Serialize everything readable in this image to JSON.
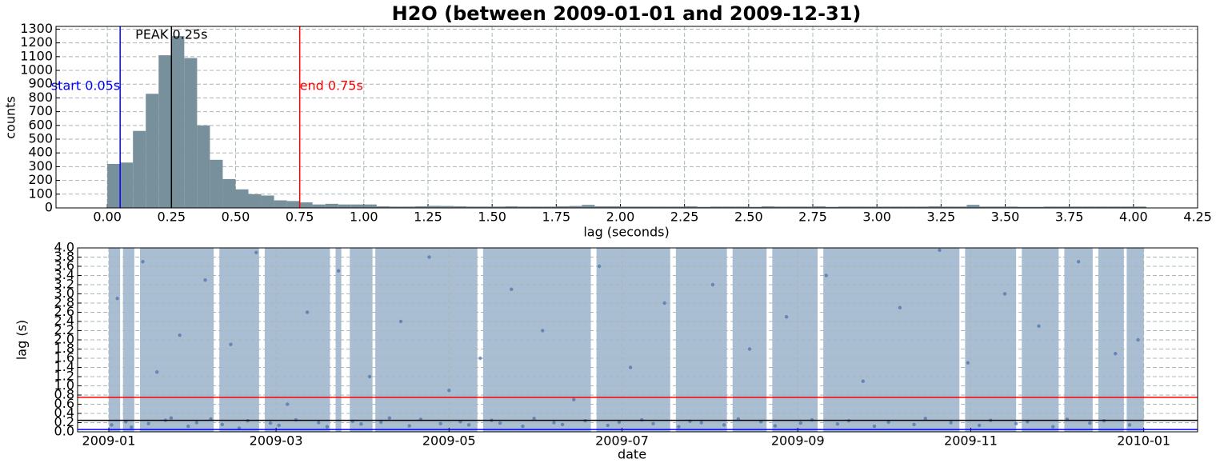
{
  "chart_data": [
    {
      "type": "histogram",
      "title": "H2O (between 2009-01-01 and 2009-12-31)",
      "x_label": "lag (seconds)",
      "y_label": "counts",
      "color": "#78909c",
      "grid": true,
      "bins": [
        0,
        0.05,
        0.1,
        0.15,
        0.2,
        0.25,
        0.3,
        0.35,
        0.4,
        0.45,
        0.5,
        0.55,
        0.6,
        0.65,
        0.7,
        0.75,
        0.8,
        0.85,
        0.9,
        0.95,
        1,
        1.05,
        1.1,
        1.15,
        1.2,
        1.25,
        1.3,
        1.35,
        1.4,
        1.45,
        1.5,
        1.55,
        1.6,
        1.65,
        1.7,
        1.75,
        1.8,
        1.85,
        1.9,
        1.95,
        2,
        2.05,
        2.1,
        2.15,
        2.2,
        2.25,
        2.3,
        2.35,
        2.4,
        2.45,
        2.5,
        2.55,
        2.6,
        2.65,
        2.7,
        2.75,
        2.8,
        2.85,
        2.9,
        2.95,
        3,
        3.05,
        3.1,
        3.15,
        3.2,
        3.25,
        3.3,
        3.35,
        3.4,
        3.45,
        3.5,
        3.55,
        3.6,
        3.65,
        3.7,
        3.75,
        3.8,
        3.85,
        3.9,
        3.95,
        4,
        4.05
      ],
      "values": [
        320,
        330,
        560,
        830,
        1110,
        1250,
        1090,
        600,
        350,
        210,
        135,
        100,
        90,
        55,
        50,
        40,
        25,
        30,
        25,
        25,
        25,
        12,
        10,
        10,
        12,
        15,
        14,
        12,
        10,
        10,
        10,
        12,
        10,
        10,
        10,
        12,
        14,
        22,
        12,
        12,
        10,
        10,
        10,
        10,
        10,
        12,
        8,
        10,
        10,
        10,
        8,
        12,
        10,
        10,
        10,
        12,
        8,
        10,
        10,
        10,
        10,
        10,
        10,
        10,
        12,
        10,
        10,
        22,
        10,
        10,
        10,
        8,
        8,
        10,
        10,
        10,
        10,
        10,
        10,
        10,
        10
      ],
      "xlim": [
        -0.2,
        4.25
      ],
      "ylim": [
        0,
        1320
      ],
      "xticks": [
        {
          "value": 0,
          "label": "0.00"
        },
        {
          "value": 0.25,
          "label": "0.25"
        },
        {
          "value": 0.5,
          "label": "0.50"
        },
        {
          "value": 0.75,
          "label": "0.75"
        },
        {
          "value": 1,
          "label": "1.00"
        },
        {
          "value": 1.25,
          "label": "1.25"
        },
        {
          "value": 1.5,
          "label": "1.50"
        },
        {
          "value": 1.75,
          "label": "1.75"
        },
        {
          "value": 2,
          "label": "2.00"
        },
        {
          "value": 2.25,
          "label": "2.25"
        },
        {
          "value": 2.5,
          "label": "2.50"
        },
        {
          "value": 2.75,
          "label": "2.75"
        },
        {
          "value": 3,
          "label": "3.00"
        },
        {
          "value": 3.25,
          "label": "3.25"
        },
        {
          "value": 3.5,
          "label": "3.50"
        },
        {
          "value": 3.75,
          "label": "3.75"
        },
        {
          "value": 4,
          "label": "4.00"
        },
        {
          "value": 4.25,
          "label": "4.25"
        }
      ],
      "yticks": [
        0,
        100,
        200,
        300,
        400,
        500,
        600,
        700,
        800,
        900,
        1000,
        1100,
        1200,
        1300
      ],
      "annotations": [
        {
          "x": 0.05,
          "label": "start 0.05s",
          "color": "#0000ff"
        },
        {
          "x": 0.75,
          "label": "end 0.75s",
          "color": "#ff0000"
        },
        {
          "x": 0.25,
          "label": "PEAK 0.25s",
          "color": "#000000"
        }
      ]
    },
    {
      "type": "scatter",
      "x_label": "date",
      "y_label": "lag (s)",
      "color": "#4f74a8",
      "span_color": "#a9bdd3",
      "grid": true,
      "x": [
        1,
        3,
        6,
        8,
        12,
        14,
        17,
        20,
        22,
        25,
        28,
        31,
        34,
        36,
        40,
        43,
        46,
        49,
        52,
        57,
        60,
        63,
        66,
        70,
        74,
        77,
        81,
        86,
        89,
        92,
        96,
        99,
        103,
        106,
        110,
        113,
        117,
        120,
        124,
        127,
        131,
        135,
        138,
        142,
        146,
        150,
        153,
        157,
        160,
        164,
        168,
        173,
        176,
        180,
        184,
        188,
        192,
        196,
        201,
        205,
        209,
        213,
        217,
        222,
        226,
        230,
        235,
        239,
        244,
        248,
        253,
        257,
        261,
        266,
        270,
        275,
        279,
        284,
        288,
        293,
        297,
        303,
        307,
        311,
        316,
        320,
        324,
        328,
        333,
        338,
        342,
        346,
        351,
        355,
        360,
        363
      ],
      "values": [
        0.15,
        2.9,
        0.22,
        0.1,
        3.7,
        0.18,
        1.3,
        0.25,
        0.3,
        2.1,
        0.12,
        0.2,
        3.3,
        0.28,
        0.16,
        1.9,
        0.08,
        0.24,
        3.9,
        0.19,
        0.14,
        0.6,
        0.26,
        2.6,
        0.2,
        0.11,
        3.5,
        0.23,
        0.17,
        1.2,
        0.21,
        0.3,
        2.4,
        0.13,
        0.27,
        3.8,
        0.18,
        0.9,
        0.22,
        0.15,
        1.6,
        0.25,
        0.19,
        3.1,
        0.12,
        0.29,
        2.2,
        0.2,
        0.16,
        0.7,
        0.24,
        3.6,
        0.14,
        0.21,
        1.4,
        0.26,
        0.18,
        2.8,
        0.11,
        0.23,
        0.2,
        3.2,
        0.15,
        0.28,
        1.8,
        0.22,
        0.13,
        2.5,
        0.19,
        0.26,
        3.4,
        0.17,
        0.24,
        1.1,
        0.12,
        0.21,
        2.7,
        0.16,
        0.29,
        3.95,
        0.2,
        1.5,
        0.14,
        0.25,
        3.0,
        0.18,
        0.22,
        2.3,
        0.11,
        0.27,
        3.7,
        0.19,
        0.24,
        1.7,
        0.15,
        2.0
      ],
      "spans": [
        [
          0,
          4
        ],
        [
          5,
          9
        ],
        [
          11,
          37
        ],
        [
          39,
          53
        ],
        [
          55,
          78
        ],
        [
          80,
          82
        ],
        [
          85,
          93
        ],
        [
          94,
          130
        ],
        [
          132,
          170
        ],
        [
          172,
          198
        ],
        [
          200,
          218
        ],
        [
          220,
          232
        ],
        [
          234,
          250
        ],
        [
          252,
          300
        ],
        [
          302,
          320
        ],
        [
          322,
          335
        ],
        [
          337,
          347
        ],
        [
          349,
          358
        ],
        [
          359,
          365
        ]
      ],
      "hlines": [
        {
          "y": 0.75,
          "color": "#ff0000"
        },
        {
          "y": 0.25,
          "color": "#000000"
        },
        {
          "y": 0.05,
          "color": "#0000ff"
        }
      ],
      "xlim": [
        -11,
        384
      ],
      "ylim": [
        0,
        4
      ],
      "xticks": [
        {
          "value": 0,
          "label": "2009-01"
        },
        {
          "value": 59,
          "label": "2009-03"
        },
        {
          "value": 120,
          "label": "2009-05"
        },
        {
          "value": 181,
          "label": "2009-07"
        },
        {
          "value": 243,
          "label": "2009-09"
        },
        {
          "value": 304,
          "label": "2009-11"
        },
        {
          "value": 365,
          "label": "2010-01"
        }
      ],
      "yticks": [
        {
          "value": 0,
          "label": "0.0"
        },
        {
          "value": 0.2,
          "label": "0.2"
        },
        {
          "value": 0.4,
          "label": "0.4"
        },
        {
          "value": 0.6,
          "label": "0.6"
        },
        {
          "value": 0.8,
          "label": "0.8"
        },
        {
          "value": 1,
          "label": "1.0"
        },
        {
          "value": 1.2,
          "label": "1.2"
        },
        {
          "value": 1.4,
          "label": "1.4"
        },
        {
          "value": 1.6,
          "label": "1.6"
        },
        {
          "value": 1.8,
          "label": "1.8"
        },
        {
          "value": 2,
          "label": "2.0"
        },
        {
          "value": 2.2,
          "label": "2.2"
        },
        {
          "value": 2.4,
          "label": "2.4"
        },
        {
          "value": 2.6,
          "label": "2.6"
        },
        {
          "value": 2.8,
          "label": "2.8"
        },
        {
          "value": 3,
          "label": "3.0"
        },
        {
          "value": 3.2,
          "label": "3.2"
        },
        {
          "value": 3.4,
          "label": "3.4"
        },
        {
          "value": 3.6,
          "label": "3.6"
        },
        {
          "value": 3.8,
          "label": "3.8"
        },
        {
          "value": 4,
          "label": "4.0"
        }
      ]
    }
  ]
}
